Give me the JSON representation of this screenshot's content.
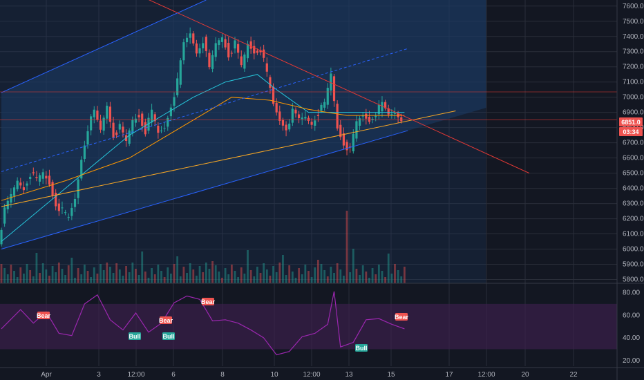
{
  "colors": {
    "background": "#131722",
    "grid": "#2a2e39",
    "up": "#26a69a",
    "down": "#ef5350",
    "channel": "#2962ff",
    "channel_fill": "#1c3c66",
    "trend_red": "#e53935",
    "trend_orange": "#f9a825",
    "ma_teal": "#26c6da",
    "ma_orange": "#ff9800",
    "rsi": "#9c27b0",
    "rsi_band": "#3a1f4a",
    "bull": "#26a69a",
    "bear": "#ef5350"
  },
  "chart_data": [
    {
      "type": "line",
      "title": "",
      "description": "Candlestick price chart with volume bars, ascending channel and trendlines",
      "x_ticks": [
        "Apr",
        "3",
        "12:00",
        "6",
        "8",
        "10",
        "12:00",
        "13",
        "15",
        "17",
        "12:00",
        "20",
        "22"
      ],
      "y_ticks": [
        "7600.0",
        "7500.0",
        "7400.0",
        "7300.0",
        "7200.0",
        "7100.0",
        "7000.0",
        "6900.0",
        "6800.0",
        "6700.0",
        "6600.0",
        "6500.0",
        "6400.0",
        "6300.0",
        "6200.0",
        "6100.0",
        "6000.0",
        "5900.0",
        "5800.0"
      ],
      "ylim": [
        5775,
        7640
      ],
      "last_price_label": "6851.0",
      "countdown_label": "03:34",
      "grid": true,
      "price_path": [
        [
          0,
          6050
        ],
        [
          2,
          6250
        ],
        [
          4,
          6350
        ],
        [
          6,
          6450
        ],
        [
          8,
          6400
        ],
        [
          10,
          6500
        ],
        [
          12,
          6450
        ],
        [
          14,
          6500
        ],
        [
          16,
          6430
        ],
        [
          18,
          6300
        ],
        [
          20,
          6250
        ],
        [
          22,
          6200
        ],
        [
          24,
          6330
        ],
        [
          26,
          6600
        ],
        [
          28,
          6800
        ],
        [
          30,
          6900
        ],
        [
          32,
          6780
        ],
        [
          34,
          6950
        ],
        [
          36,
          6750
        ],
        [
          38,
          6800
        ],
        [
          40,
          6700
        ],
        [
          42,
          6850
        ],
        [
          44,
          6880
        ],
        [
          46,
          6780
        ],
        [
          48,
          6900
        ],
        [
          50,
          6760
        ],
        [
          52,
          6800
        ],
        [
          54,
          6950
        ],
        [
          56,
          7100
        ],
        [
          58,
          7350
        ],
        [
          60,
          7420
        ],
        [
          62,
          7300
        ],
        [
          64,
          7380
        ],
        [
          66,
          7180
        ],
        [
          68,
          7350
        ],
        [
          70,
          7400
        ],
        [
          72,
          7280
        ],
        [
          74,
          7350
        ],
        [
          76,
          7200
        ],
        [
          78,
          7350
        ],
        [
          80,
          7300
        ],
        [
          82,
          7320
        ],
        [
          84,
          7150
        ],
        [
          86,
          6950
        ],
        [
          88,
          6850
        ],
        [
          90,
          6800
        ],
        [
          92,
          6900
        ],
        [
          94,
          6850
        ],
        [
          96,
          6870
        ],
        [
          98,
          6830
        ],
        [
          100,
          6900
        ],
        [
          102,
          6950
        ],
        [
          104,
          7150
        ],
        [
          106,
          6800
        ],
        [
          108,
          6700
        ],
        [
          110,
          6650
        ],
        [
          112,
          6830
        ],
        [
          114,
          6880
        ],
        [
          116,
          6850
        ],
        [
          118,
          6900
        ],
        [
          120,
          6950
        ],
        [
          122,
          6880
        ],
        [
          124,
          6900
        ],
        [
          126,
          6860
        ]
      ],
      "moving_averages": [
        {
          "name": "ma_fast",
          "values": [
            [
              0,
              6050
            ],
            [
              20,
              6400
            ],
            [
              40,
              6750
            ],
            [
              60,
              7000
            ],
            [
              70,
              7100
            ],
            [
              80,
              7150
            ],
            [
              86,
              7050
            ],
            [
              96,
              6900
            ],
            [
              106,
              6900
            ],
            [
              126,
              6900
            ]
          ]
        },
        {
          "name": "ma_slow",
          "values": [
            [
              0,
              6320
            ],
            [
              20,
              6450
            ],
            [
              40,
              6600
            ],
            [
              60,
              6850
            ],
            [
              72,
              7000
            ],
            [
              84,
              6980
            ],
            [
              96,
              6920
            ],
            [
              108,
              6880
            ],
            [
              126,
              6880
            ]
          ]
        }
      ],
      "trendlines": [
        {
          "name": "channel-upper",
          "points": [
            [
              0,
              7030
            ],
            [
              64,
              7640
            ]
          ]
        },
        {
          "name": "channel-mid",
          "points": [
            [
              0,
              6510
            ],
            [
              127,
              7320
            ]
          ]
        },
        {
          "name": "channel-lower",
          "points": [
            [
              0,
              6000
            ],
            [
              127,
              6780
            ]
          ]
        },
        {
          "name": "descending-resistance",
          "points": [
            [
              40,
              7700
            ],
            [
              165,
              6500
            ]
          ]
        },
        {
          "name": "rising-support",
          "points": [
            [
              0,
              6280
            ],
            [
              142,
              6910
            ]
          ]
        }
      ]
    },
    {
      "type": "line",
      "title": "",
      "description": "RSI oscillator with bull/bear divergence markers",
      "y_ticks": [
        "80.00",
        "60.00",
        "40.00",
        "20.00"
      ],
      "ylim": [
        15,
        87
      ],
      "band": [
        30,
        70
      ],
      "rsi_path": [
        [
          0,
          50
        ],
        [
          6,
          65
        ],
        [
          10,
          55
        ],
        [
          14,
          62
        ],
        [
          18,
          45
        ],
        [
          22,
          40
        ],
        [
          26,
          70
        ],
        [
          30,
          80
        ],
        [
          34,
          55
        ],
        [
          38,
          48
        ],
        [
          42,
          60
        ],
        [
          46,
          45
        ],
        [
          50,
          55
        ],
        [
          54,
          70
        ],
        [
          58,
          78
        ],
        [
          62,
          72
        ],
        [
          66,
          55
        ],
        [
          70,
          58
        ],
        [
          74,
          52
        ],
        [
          78,
          48
        ],
        [
          82,
          38
        ],
        [
          86,
          25
        ],
        [
          90,
          30
        ],
        [
          94,
          40
        ],
        [
          98,
          45
        ],
        [
          102,
          50
        ],
        [
          104,
          80
        ],
        [
          106,
          32
        ],
        [
          110,
          38
        ],
        [
          114,
          55
        ],
        [
          118,
          58
        ],
        [
          122,
          50
        ],
        [
          126,
          48
        ]
      ],
      "markers": [
        {
          "label": "Bear",
          "kind": "bear"
        },
        {
          "label": "Bull",
          "kind": "bull"
        },
        {
          "label": "Bear",
          "kind": "bear"
        },
        {
          "label": "Bull",
          "kind": "bull"
        },
        {
          "label": "Bear",
          "kind": "bear"
        },
        {
          "label": "Bull",
          "kind": "bull"
        },
        {
          "label": "Bear",
          "kind": "bear"
        }
      ]
    }
  ]
}
